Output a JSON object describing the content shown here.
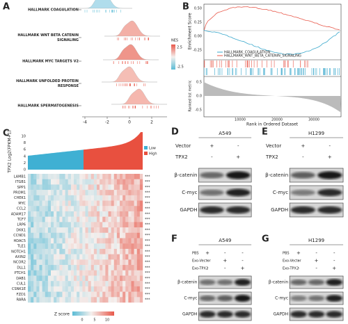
{
  "panels": {
    "A": {
      "label": "A",
      "pathways": [
        "HALLMARK COAGULATION",
        "HALLMARK WNT BETA CATENIN SIGNALING",
        "HALLMARK MYC TARGETS V2",
        "HALLMARK UNFOLDED PROTEIN RESPONSE",
        "HALLMARK SPERMATOGENESIS"
      ],
      "xticks": [
        "-4",
        "-2",
        "0",
        "2"
      ],
      "legend": {
        "title": "NES",
        "high": "2.5",
        "low": "-2.5"
      }
    },
    "B": {
      "label": "B",
      "y_label": "Enrichment Score",
      "yticks": [
        "0.50",
        "0.25",
        "0.00",
        "-0.25"
      ],
      "legend": [
        "HALLMARK_COAGULATION",
        "HALLMARK_WNT_BETA_CATENIN_SIGNALING"
      ],
      "metric_label": "Ranked list metric",
      "metric_ticks": [
        "0.5",
        "0.0",
        "-0.5"
      ],
      "x_label": "Rank in Ordered Dataset",
      "xticks": [
        "10000",
        "20000",
        "30000"
      ]
    },
    "C": {
      "label": "C",
      "y_label": "TPX2 Log2(FPKM+1)",
      "yticks": [
        "10",
        "8",
        "6",
        "4",
        "2",
        "0"
      ],
      "legend": [
        "Low",
        "High"
      ],
      "genes": [
        "LAMB1",
        "ITGB1",
        "SPP1",
        "PROM1",
        "CHEK1",
        "MYC",
        "CCL2",
        "ADAM17",
        "TCF7",
        "LRP6",
        "DKK1",
        "CCND1",
        "HDAC5",
        "TLE1",
        "NOTCH1",
        "AXIN2",
        "NCOR2",
        "DLL1",
        "PTCH1",
        "DAB1",
        "CUL1",
        "CSNK1E",
        "FZD1",
        "RARA"
      ],
      "significance": "***",
      "z_title": "Z score",
      "z_ticks": [
        "0",
        "5",
        "10"
      ]
    },
    "D": {
      "label": "D",
      "cell_line": "A549",
      "conditions": [
        {
          "name": "Vector",
          "signs": [
            "+",
            "-"
          ]
        },
        {
          "name": "TPX2",
          "signs": [
            "-",
            "+"
          ]
        }
      ],
      "bands": [
        "β-catenin",
        "C-myc",
        "GAPDH"
      ]
    },
    "E": {
      "label": "E",
      "cell_line": "H1299",
      "conditions": [
        {
          "name": "Vector",
          "signs": [
            "+",
            "-"
          ]
        },
        {
          "name": "TPX2",
          "signs": [
            "-",
            "+"
          ]
        }
      ],
      "bands": [
        "β-catenin",
        "C-myc",
        "GAPDH"
      ]
    },
    "F": {
      "label": "F",
      "cell_line": "A549",
      "conditions": [
        {
          "name": "PBS",
          "signs": [
            "+",
            "-",
            "-"
          ]
        },
        {
          "name": "Exo-Vector",
          "signs": [
            "-",
            "+",
            "-"
          ]
        },
        {
          "name": "Exo-TPX2",
          "signs": [
            "-",
            "-",
            "+"
          ]
        }
      ],
      "bands": [
        "β-catenin",
        "C-myc",
        "GAPDH"
      ]
    },
    "G": {
      "label": "G",
      "cell_line": "H1299",
      "conditions": [
        {
          "name": "PBS",
          "signs": [
            "+",
            "-",
            "-"
          ]
        },
        {
          "name": "Exo-Vector",
          "signs": [
            "-",
            "+",
            "-"
          ]
        },
        {
          "name": "Exo-TPX2",
          "signs": [
            "-",
            "-",
            "+"
          ]
        }
      ],
      "bands": [
        "β-catenin",
        "C-myc",
        "GAPDH"
      ]
    }
  }
}
